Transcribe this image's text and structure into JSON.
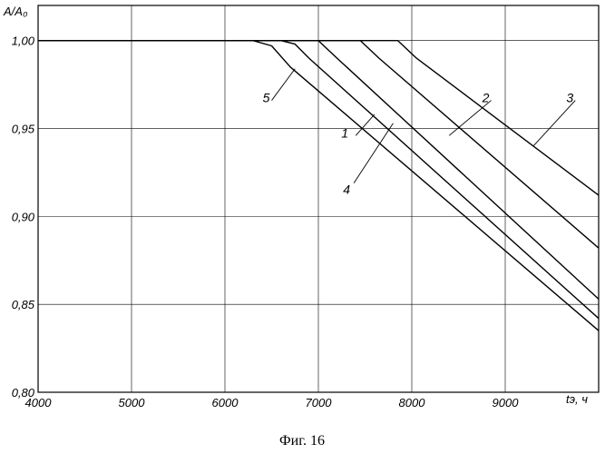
{
  "chart_data": {
    "type": "line",
    "ylabel": "A/A₀",
    "xlabel": "tэ, ч",
    "xlim": [
      4000,
      10000
    ],
    "ylim": [
      0.8,
      1.02
    ],
    "grid": true,
    "x_ticks": [
      "4000",
      "5000",
      "6000",
      "7000",
      "8000",
      "9000"
    ],
    "y_ticks": [
      "1,00",
      "0,95",
      "0,90",
      "0,85",
      "0,80"
    ],
    "series": [
      {
        "name": "1",
        "points": [
          [
            4000,
            1.0
          ],
          [
            6600,
            1.0
          ],
          [
            6750,
            0.998
          ],
          [
            6900,
            0.99
          ],
          [
            10000,
            0.842
          ]
        ]
      },
      {
        "name": "2",
        "points": [
          [
            4000,
            1.0
          ],
          [
            7300,
            1.0
          ],
          [
            7450,
            1.0
          ],
          [
            7650,
            0.99
          ],
          [
            10000,
            0.882
          ]
        ]
      },
      {
        "name": "3",
        "points": [
          [
            4000,
            1.0
          ],
          [
            7700,
            1.0
          ],
          [
            7850,
            1.0
          ],
          [
            8050,
            0.99
          ],
          [
            10000,
            0.912
          ]
        ]
      },
      {
        "name": "4",
        "points": [
          [
            4000,
            1.0
          ],
          [
            6900,
            1.0
          ],
          [
            7000,
            1.0
          ],
          [
            7200,
            0.99
          ],
          [
            10000,
            0.853
          ]
        ]
      },
      {
        "name": "5",
        "points": [
          [
            4000,
            1.0
          ],
          [
            6300,
            1.0
          ],
          [
            6500,
            0.997
          ],
          [
            6700,
            0.985
          ],
          [
            10000,
            0.835
          ]
        ]
      }
    ],
    "annotations": [
      {
        "label": "1",
        "at": [
          7400,
          0.946
        ],
        "target": [
          7600,
          0.958
        ]
      },
      {
        "label": "2",
        "at": [
          8850,
          0.966
        ],
        "target": [
          8400,
          0.946
        ]
      },
      {
        "label": "3",
        "at": [
          9750,
          0.966
        ],
        "target": [
          9300,
          0.94
        ]
      },
      {
        "label": "4",
        "at": [
          7380,
          0.919
        ],
        "target": [
          7800,
          0.953
        ]
      },
      {
        "label": "5",
        "at": [
          6500,
          0.966
        ],
        "target": [
          6750,
          0.984
        ]
      }
    ]
  },
  "caption": "Фиг. 16"
}
